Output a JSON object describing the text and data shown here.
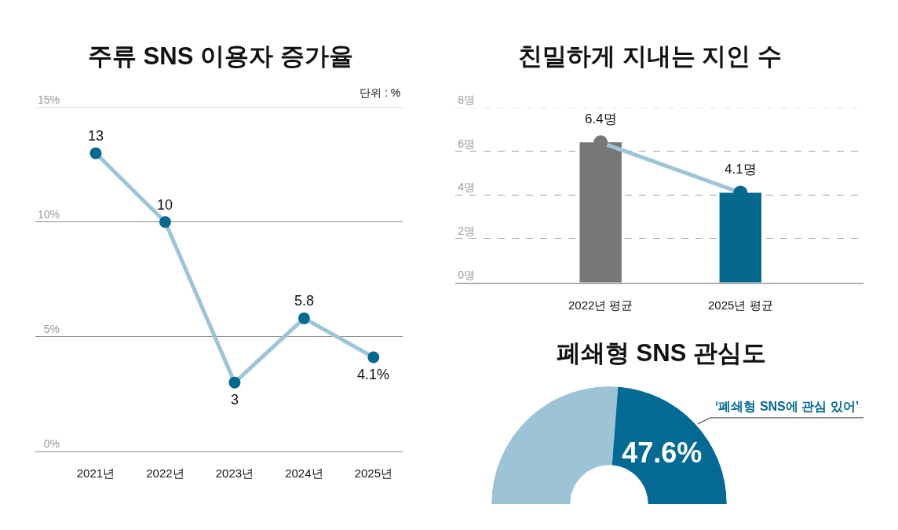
{
  "chart_data": [
    {
      "type": "line",
      "title": "주류 SNS 이용자 증가율",
      "categories": [
        "2021년",
        "2022년",
        "2023년",
        "2024년",
        "2025년"
      ],
      "series": [
        {
          "color": "#9dc5d7",
          "colors": [
            "#05688f",
            "#05688f",
            "#05688f",
            "#05688f",
            "#05688f"
          ],
          "values": [
            13,
            10,
            3,
            5.8,
            4.1
          ],
          "value_labels": [
            "13",
            "10",
            "3",
            "5.8",
            "4.1%"
          ]
        }
      ],
      "ylim": [
        0,
        15
      ],
      "yticks": [
        {
          "value": 0,
          "label": "0%"
        },
        {
          "value": 5,
          "label": "5%"
        },
        {
          "value": 10,
          "label": "10%"
        },
        {
          "value": 15,
          "label": "15%"
        }
      ],
      "grid": "y",
      "marker": "circle",
      "annotations": [
        "단위 : %"
      ]
    },
    {
      "type": "line",
      "title": "친밀하게 지내는 지인 수",
      "categories": [
        "2022년 평균",
        "2025년 평균"
      ],
      "series": [
        {
          "type": "bar",
          "colors": [
            "#777777",
            "#05688f"
          ],
          "values": [
            6.4,
            4.1
          ]
        },
        {
          "type": "line",
          "color": "#9dc5d7",
          "colors": [
            "#777777",
            "#05688f"
          ],
          "values": [
            6.4,
            4.1
          ],
          "value_labels": [
            "6.4명",
            "4.1명"
          ]
        }
      ],
      "ylim": [
        0,
        8
      ],
      "yticks": [
        {
          "value": 0,
          "label": "0명"
        },
        {
          "value": 2,
          "label": "2명"
        },
        {
          "value": 4,
          "label": "4명"
        },
        {
          "value": 6,
          "label": "6명"
        },
        {
          "value": 8,
          "label": "8명"
        }
      ],
      "grid": "y",
      "marker": "circle"
    },
    {
      "type": "donut",
      "title": "폐쇄형 SNS 관심도",
      "categories": [
        null,
        "‘폐쇄형 SNS에 관심 있어’"
      ],
      "values": [
        52.4,
        47.6
      ],
      "colors": [
        "#9cc4d6",
        "#046a94"
      ],
      "value_labels": [
        null,
        "47.6%"
      ]
    }
  ]
}
